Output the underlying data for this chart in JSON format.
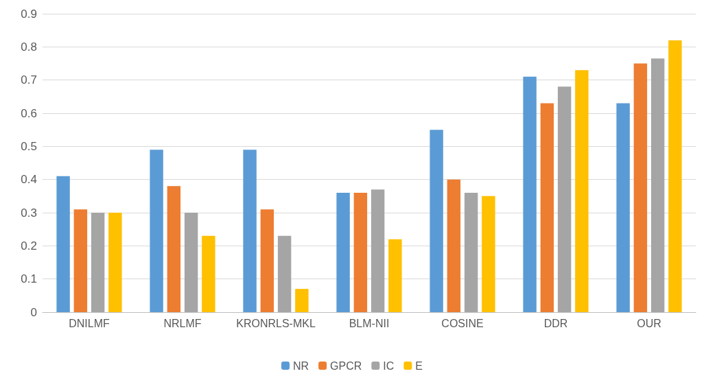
{
  "chart_data": {
    "type": "bar",
    "categories": [
      "DNILMF",
      "NRLMF",
      "KRONRLS-MKL",
      "BLM-NII",
      "COSINE",
      "DDR",
      "OUR"
    ],
    "series": [
      {
        "name": "NR",
        "color": "#5b9bd5",
        "values": [
          0.41,
          0.49,
          0.49,
          0.36,
          0.55,
          0.71,
          0.63
        ]
      },
      {
        "name": "GPCR",
        "color": "#ed7d31",
        "values": [
          0.31,
          0.38,
          0.31,
          0.36,
          0.4,
          0.63,
          0.75
        ]
      },
      {
        "name": "IC",
        "color": "#a5a5a5",
        "values": [
          0.3,
          0.3,
          0.23,
          0.37,
          0.36,
          0.68,
          0.765
        ]
      },
      {
        "name": "E",
        "color": "#ffc000",
        "values": [
          0.3,
          0.23,
          0.07,
          0.22,
          0.35,
          0.73,
          0.82
        ]
      }
    ],
    "ylim": [
      0,
      0.9
    ],
    "yticks": [
      0,
      0.1,
      0.2,
      0.3,
      0.4,
      0.5,
      0.6,
      0.7,
      0.8,
      0.9
    ],
    "grid": "y",
    "legend": "bottom"
  }
}
